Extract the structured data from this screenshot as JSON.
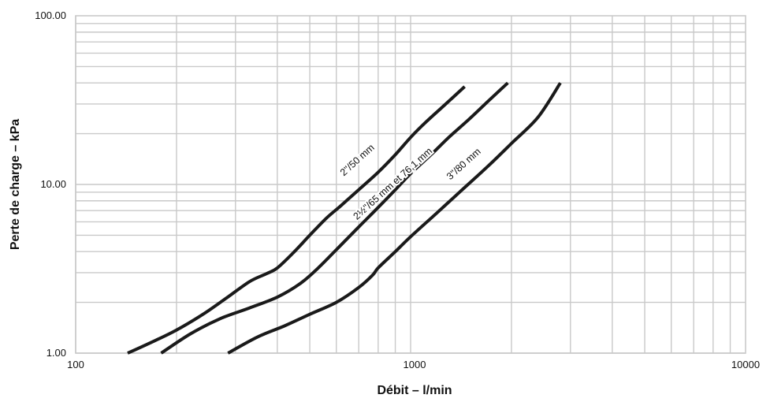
{
  "chart_data": {
    "type": "line",
    "xlabel": "Débit – l/min",
    "ylabel": "Perte de charge – kPa",
    "x_scale": "log",
    "y_scale": "log",
    "xlim": [
      100,
      10000
    ],
    "ylim": [
      1,
      100
    ],
    "x_ticks": [
      "100",
      "1000",
      "10000"
    ],
    "y_ticks": [
      "1.00",
      "10.00",
      "100.00"
    ],
    "grid": true,
    "series": [
      {
        "name": "2\"/50 mm",
        "x": [
          143,
          170,
          200,
          240,
          280,
          330,
          370,
          400,
          450,
          500,
          560,
          620,
          700,
          800,
          900,
          1000,
          1100,
          1250,
          1450
        ],
        "y": [
          1.0,
          1.17,
          1.37,
          1.7,
          2.1,
          2.65,
          2.95,
          3.2,
          4.0,
          5.0,
          6.3,
          7.5,
          9.3,
          11.8,
          15.0,
          19.0,
          23.0,
          29.0,
          38.0
        ]
      },
      {
        "name": "2½\"/65 mm et 76,1 mm",
        "x": [
          180,
          220,
          270,
          330,
          400,
          470,
          530,
          600,
          700,
          800,
          900,
          1000,
          1150,
          1300,
          1500,
          1700,
          1950
        ],
        "y": [
          1.0,
          1.3,
          1.6,
          1.85,
          2.15,
          2.6,
          3.2,
          4.1,
          5.6,
          7.3,
          9.3,
          11.6,
          15.0,
          19.0,
          24.5,
          31.0,
          40.0
        ]
      },
      {
        "name": "3\"/80 mm",
        "x": [
          285,
          350,
          420,
          500,
          600,
          700,
          770,
          800,
          900,
          1000,
          1200,
          1400,
          1700,
          2000,
          2400,
          2800
        ],
        "y": [
          1.0,
          1.25,
          1.45,
          1.7,
          2.0,
          2.45,
          2.9,
          3.2,
          4.0,
          4.9,
          6.8,
          9.0,
          12.8,
          17.5,
          25.0,
          40.0
        ]
      }
    ]
  }
}
